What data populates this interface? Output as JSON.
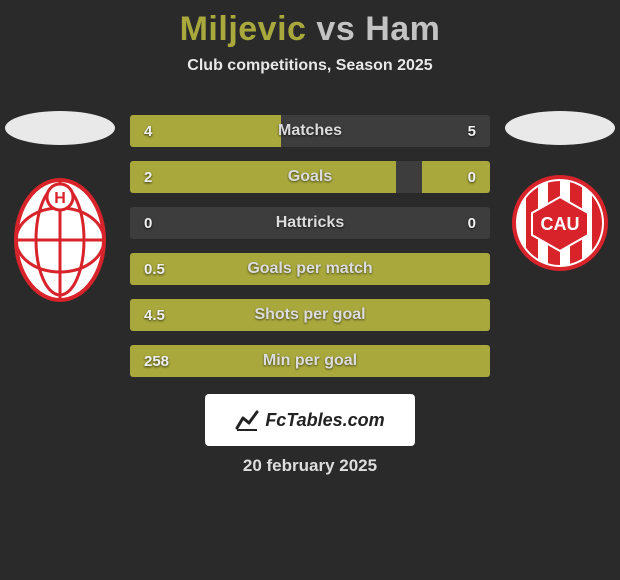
{
  "title": {
    "player1": "Miljevic",
    "vs": "vs",
    "player2": "Ham"
  },
  "subtitle": "Club competitions, Season 2025",
  "colors": {
    "accent": "#a8a83d",
    "bar_bg": "#3d3d3d",
    "page_bg": "#2a2a2a",
    "title_p1": "#a8a83d",
    "title_rest": "#c3c3c3"
  },
  "player1_crest": {
    "label": "H",
    "primary": "#d8232a",
    "secondary": "#ffffff"
  },
  "player2_crest": {
    "label": "CAU",
    "primary": "#d8232a",
    "secondary": "#ffffff"
  },
  "rows": [
    {
      "label": "Matches",
      "left_val": "4",
      "right_val": "5",
      "left_pct": 42,
      "right_pct": 0
    },
    {
      "label": "Goals",
      "left_val": "2",
      "right_val": "0",
      "left_pct": 74,
      "right_pct": 19
    },
    {
      "label": "Hattricks",
      "left_val": "0",
      "right_val": "0",
      "left_pct": 0,
      "right_pct": 0
    },
    {
      "label": "Goals per match",
      "left_val": "0.5",
      "right_val": "",
      "left_pct": 100,
      "right_pct": 0
    },
    {
      "label": "Shots per goal",
      "left_val": "4.5",
      "right_val": "",
      "left_pct": 100,
      "right_pct": 0
    },
    {
      "label": "Min per goal",
      "left_val": "258",
      "right_val": "",
      "left_pct": 100,
      "right_pct": 0
    }
  ],
  "watermark": {
    "text": "FcTables.com"
  },
  "date": "20 february 2025"
}
